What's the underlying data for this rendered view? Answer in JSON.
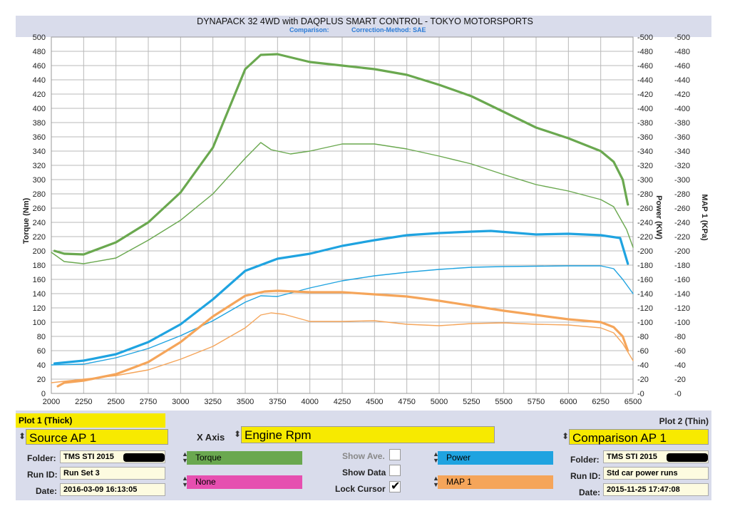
{
  "chart_data": {
    "type": "line",
    "title": "DYNAPACK 32 4WD with DAQPLUS SMART CONTROL - TOKYO MOTORSPORTS",
    "subtitle_left": "Comparison:",
    "subtitle_right": "Correction-Method: SAE",
    "xlim": [
      2000,
      6500
    ],
    "x_ticks": [
      2000,
      2250,
      2500,
      2750,
      3000,
      3250,
      3500,
      3750,
      4000,
      4250,
      4500,
      4750,
      5000,
      5250,
      5500,
      5750,
      6000,
      6250,
      6500
    ],
    "ylim": [
      0,
      500
    ],
    "y_ticks": [
      0,
      20,
      40,
      60,
      80,
      100,
      120,
      140,
      160,
      180,
      200,
      220,
      240,
      260,
      280,
      300,
      320,
      340,
      360,
      380,
      400,
      420,
      440,
      460,
      480,
      500
    ],
    "ylabel_left": "Torque (Nm)",
    "ylabel_right1": "Power (KW)",
    "ylabel_right2": "MAP 1 (KPa)",
    "grid": true,
    "series": [
      {
        "id": "torque_thick",
        "color": "#6aa84f",
        "width": 3.2,
        "points": [
          [
            2025,
            200
          ],
          [
            2100,
            196
          ],
          [
            2250,
            195
          ],
          [
            2500,
            212
          ],
          [
            2750,
            240
          ],
          [
            3000,
            282
          ],
          [
            3250,
            345
          ],
          [
            3500,
            455
          ],
          [
            3620,
            475
          ],
          [
            3750,
            476
          ],
          [
            4000,
            465
          ],
          [
            4250,
            460
          ],
          [
            4500,
            455
          ],
          [
            4750,
            447
          ],
          [
            5000,
            433
          ],
          [
            5250,
            417
          ],
          [
            5500,
            395
          ],
          [
            5750,
            373
          ],
          [
            6000,
            358
          ],
          [
            6250,
            340
          ],
          [
            6350,
            325
          ],
          [
            6420,
            300
          ],
          [
            6460,
            265
          ]
        ]
      },
      {
        "id": "torque_thin",
        "color": "#6aa84f",
        "width": 1.4,
        "points": [
          [
            2000,
            198
          ],
          [
            2100,
            185
          ],
          [
            2250,
            182
          ],
          [
            2500,
            190
          ],
          [
            2750,
            215
          ],
          [
            3000,
            243
          ],
          [
            3250,
            280
          ],
          [
            3500,
            330
          ],
          [
            3620,
            352
          ],
          [
            3700,
            342
          ],
          [
            3850,
            336
          ],
          [
            4000,
            340
          ],
          [
            4250,
            350
          ],
          [
            4500,
            350
          ],
          [
            4750,
            343
          ],
          [
            5000,
            333
          ],
          [
            5250,
            322
          ],
          [
            5500,
            307
          ],
          [
            5750,
            293
          ],
          [
            6000,
            284
          ],
          [
            6250,
            272
          ],
          [
            6350,
            262
          ],
          [
            6450,
            230
          ],
          [
            6500,
            205
          ]
        ]
      },
      {
        "id": "power_thick",
        "color": "#1fa3e0",
        "width": 3.2,
        "points": [
          [
            2025,
            42
          ],
          [
            2250,
            46
          ],
          [
            2500,
            55
          ],
          [
            2750,
            72
          ],
          [
            3000,
            97
          ],
          [
            3250,
            132
          ],
          [
            3500,
            172
          ],
          [
            3750,
            189
          ],
          [
            4000,
            196
          ],
          [
            4250,
            207
          ],
          [
            4500,
            215
          ],
          [
            4750,
            222
          ],
          [
            5000,
            225
          ],
          [
            5250,
            227
          ],
          [
            5400,
            228
          ],
          [
            5750,
            223
          ],
          [
            6000,
            224
          ],
          [
            6250,
            222
          ],
          [
            6400,
            218
          ],
          [
            6460,
            182
          ]
        ]
      },
      {
        "id": "power_thin",
        "color": "#1fa3e0",
        "width": 1.4,
        "points": [
          [
            2000,
            40
          ],
          [
            2250,
            41
          ],
          [
            2500,
            50
          ],
          [
            2750,
            63
          ],
          [
            3000,
            81
          ],
          [
            3250,
            102
          ],
          [
            3500,
            128
          ],
          [
            3620,
            137
          ],
          [
            3750,
            136
          ],
          [
            4000,
            148
          ],
          [
            4250,
            158
          ],
          [
            4500,
            165
          ],
          [
            4750,
            170
          ],
          [
            5000,
            174
          ],
          [
            5250,
            177
          ],
          [
            5500,
            178
          ],
          [
            6000,
            179
          ],
          [
            6250,
            179
          ],
          [
            6350,
            175
          ],
          [
            6420,
            160
          ],
          [
            6500,
            140
          ]
        ]
      },
      {
        "id": "map_thick",
        "color": "#f5a55a",
        "width": 3.2,
        "points": [
          [
            2050,
            10
          ],
          [
            2100,
            15
          ],
          [
            2250,
            18
          ],
          [
            2500,
            27
          ],
          [
            2750,
            44
          ],
          [
            3000,
            72
          ],
          [
            3250,
            108
          ],
          [
            3500,
            137
          ],
          [
            3650,
            143
          ],
          [
            3750,
            144
          ],
          [
            4000,
            142
          ],
          [
            4250,
            142
          ],
          [
            4500,
            139
          ],
          [
            4750,
            136
          ],
          [
            5000,
            130
          ],
          [
            5250,
            123
          ],
          [
            5500,
            116
          ],
          [
            5750,
            110
          ],
          [
            6000,
            104
          ],
          [
            6250,
            100
          ],
          [
            6350,
            93
          ],
          [
            6420,
            80
          ],
          [
            6460,
            60
          ]
        ]
      },
      {
        "id": "map_thin",
        "color": "#f5a55a",
        "width": 1.4,
        "points": [
          [
            2000,
            15
          ],
          [
            2250,
            20
          ],
          [
            2500,
            25
          ],
          [
            2750,
            33
          ],
          [
            3000,
            48
          ],
          [
            3250,
            66
          ],
          [
            3500,
            92
          ],
          [
            3620,
            110
          ],
          [
            3700,
            113
          ],
          [
            3800,
            111
          ],
          [
            4000,
            101
          ],
          [
            4250,
            101
          ],
          [
            4500,
            102
          ],
          [
            4750,
            97
          ],
          [
            5000,
            95
          ],
          [
            5250,
            98
          ],
          [
            5500,
            99
          ],
          [
            5750,
            97
          ],
          [
            6000,
            96
          ],
          [
            6250,
            92
          ],
          [
            6350,
            85
          ],
          [
            6420,
            70
          ],
          [
            6500,
            46
          ]
        ]
      }
    ]
  },
  "panel": {
    "plot1_header": "Plot 1 (Thick)",
    "plot1_source": "Source AP 1",
    "xaxis_label": "X Axis",
    "xaxis_value": "Engine Rpm",
    "plot2_header": "Plot 2 (Thin)",
    "plot2_source": "Comparison AP 1",
    "left": {
      "folder_label": "Folder:",
      "folder_value": "TMS STI 2015",
      "runid_label": "Run ID:",
      "runid_value": "Run Set 3",
      "date_label": "Date:",
      "date_value": "2016-03-09 16:13:05"
    },
    "right": {
      "folder_label": "Folder:",
      "folder_value": "TMS STI 2015",
      "runid_label": "Run ID:",
      "runid_value": "Std car power runs",
      "date_label": "Date:",
      "date_value": "2015-11-25 17:47:08"
    },
    "channels": {
      "ch1": {
        "label": "Torque",
        "color": "#6aa84f"
      },
      "ch2": {
        "label": "None",
        "color": "#e64fb0"
      },
      "ch3": {
        "label": "Power",
        "color": "#1fa3e0"
      },
      "ch4": {
        "label": "MAP 1",
        "color": "#f5a55a"
      }
    },
    "show_ave_label": "Show Ave.",
    "show_data_label": "Show Data",
    "lock_cursor_label": "Lock Cursor",
    "lock_cursor_checked": "✔"
  }
}
